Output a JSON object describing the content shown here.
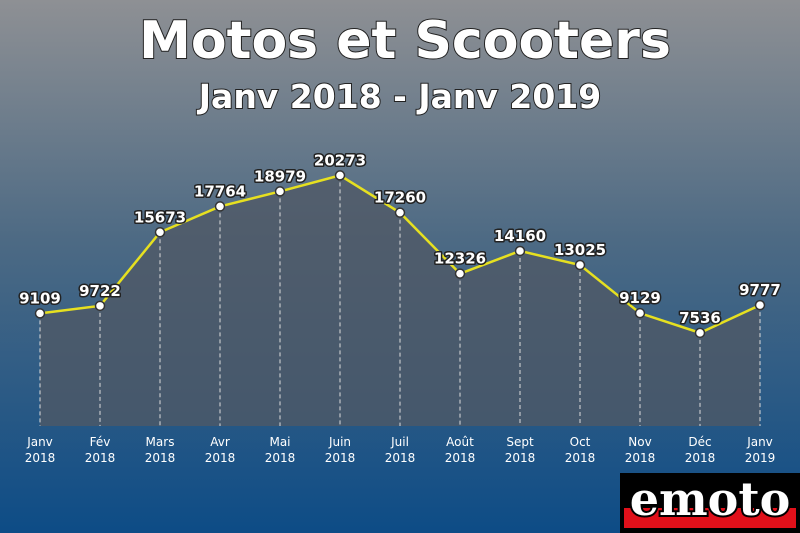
{
  "chart_data": {
    "type": "line",
    "title": "Motos et Scooters",
    "subtitle": "Janv 2018 - Janv 2019",
    "categories": [
      [
        "Janv",
        "2018"
      ],
      [
        "Fév",
        "2018"
      ],
      [
        "Mars",
        "2018"
      ],
      [
        "Avr",
        "2018"
      ],
      [
        "Mai",
        "2018"
      ],
      [
        "Juin",
        "2018"
      ],
      [
        "Juil",
        "2018"
      ],
      [
        "Août",
        "2018"
      ],
      [
        "Sept",
        "2018"
      ],
      [
        "Oct",
        "2018"
      ],
      [
        "Nov",
        "2018"
      ],
      [
        "Déc",
        "2018"
      ],
      [
        "Janv",
        "2019"
      ]
    ],
    "values": [
      9109,
      9722,
      15673,
      17764,
      18979,
      20273,
      17260,
      12326,
      14160,
      13025,
      9129,
      7536,
      9777
    ],
    "color": "#e6e020",
    "ylim": [
      0,
      23000
    ]
  },
  "logo": "emoto"
}
